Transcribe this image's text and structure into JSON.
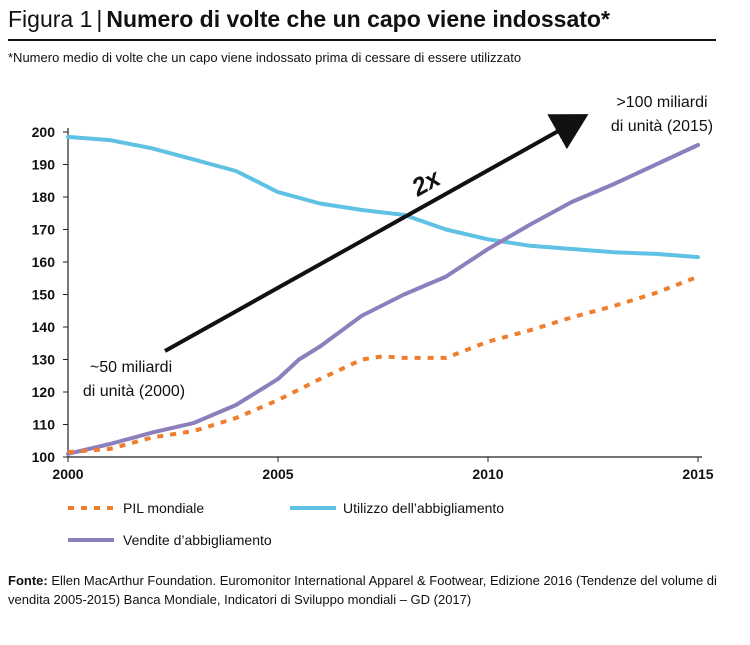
{
  "header": {
    "figure_label": "Figura 1",
    "separator": "|",
    "title": "Numero di volte che un capo viene indossato*",
    "subtitle": "*Numero medio di volte che un capo viene indossato prima di cessare di essere utilizzato"
  },
  "source": {
    "label": "Fonte:",
    "text": "Ellen MacArthur Foundation. Euromonitor International Apparel & Footwear, Edizione 2016 (Tendenze del volume di vendita 2005-2015) Banca Mondiale, Indicatori di Sviluppo mondiali – GD (2017)"
  },
  "chart_data": {
    "type": "line",
    "title": "Numero di volte che un capo viene indossato*",
    "xlim": [
      2000,
      2015
    ],
    "ylim": [
      100,
      200
    ],
    "x_ticks": [
      2000,
      2005,
      2010,
      2015
    ],
    "y_ticks": [
      100,
      110,
      120,
      130,
      140,
      150,
      160,
      170,
      180,
      190,
      200
    ],
    "grid": false,
    "legend_position": "bottom",
    "series": [
      {
        "name": "PIL mondiale",
        "color": "#ee7d2e",
        "style": "dotted",
        "points": [
          [
            2000,
            101.5
          ],
          [
            2001,
            102.5
          ],
          [
            2002,
            106
          ],
          [
            2003,
            108
          ],
          [
            2004,
            112
          ],
          [
            2005,
            117.5
          ],
          [
            2006,
            124
          ],
          [
            2007,
            130
          ],
          [
            2007.5,
            131
          ],
          [
            2008,
            130.5
          ],
          [
            2009,
            130.5
          ],
          [
            2010,
            135.5
          ],
          [
            2011,
            139
          ],
          [
            2012,
            143
          ],
          [
            2013,
            146.5
          ],
          [
            2014,
            150.5
          ],
          [
            2015,
            155.5
          ]
        ]
      },
      {
        "name": "Utilizzo dell’abbigliamento",
        "color": "#5fc1e3",
        "style": "solid",
        "points": [
          [
            2000,
            198.5
          ],
          [
            2001,
            197.5
          ],
          [
            2002,
            195
          ],
          [
            2003,
            191.5
          ],
          [
            2004,
            188
          ],
          [
            2005,
            181.5
          ],
          [
            2006,
            178
          ],
          [
            2007,
            176
          ],
          [
            2008,
            174.5
          ],
          [
            2009,
            170
          ],
          [
            2010,
            167
          ],
          [
            2011,
            165
          ],
          [
            2012,
            164
          ],
          [
            2013,
            163
          ],
          [
            2014,
            162.5
          ],
          [
            2015,
            161.5
          ]
        ]
      },
      {
        "name": "Vendite d’abbigliamento",
        "color": "#8d7fbb",
        "style": "solid",
        "points": [
          [
            2000,
            101
          ],
          [
            2001,
            104
          ],
          [
            2002,
            107.5
          ],
          [
            2003,
            110.5
          ],
          [
            2004,
            116
          ],
          [
            2005,
            124
          ],
          [
            2005.5,
            130
          ],
          [
            2006,
            134
          ],
          [
            2007,
            143.5
          ],
          [
            2008,
            150
          ],
          [
            2009,
            155.5
          ],
          [
            2010,
            164
          ],
          [
            2011,
            171.5
          ],
          [
            2012,
            178.5
          ],
          [
            2013,
            184
          ],
          [
            2014,
            190
          ],
          [
            2015,
            196
          ]
        ]
      }
    ],
    "annotations": {
      "start_label_line1": "~50 miliardi",
      "start_label_line2": "di unità (2000)",
      "end_label_line1": ">100 miliardi",
      "end_label_line2": "di unità (2015)",
      "arrow_label": "2x"
    }
  }
}
